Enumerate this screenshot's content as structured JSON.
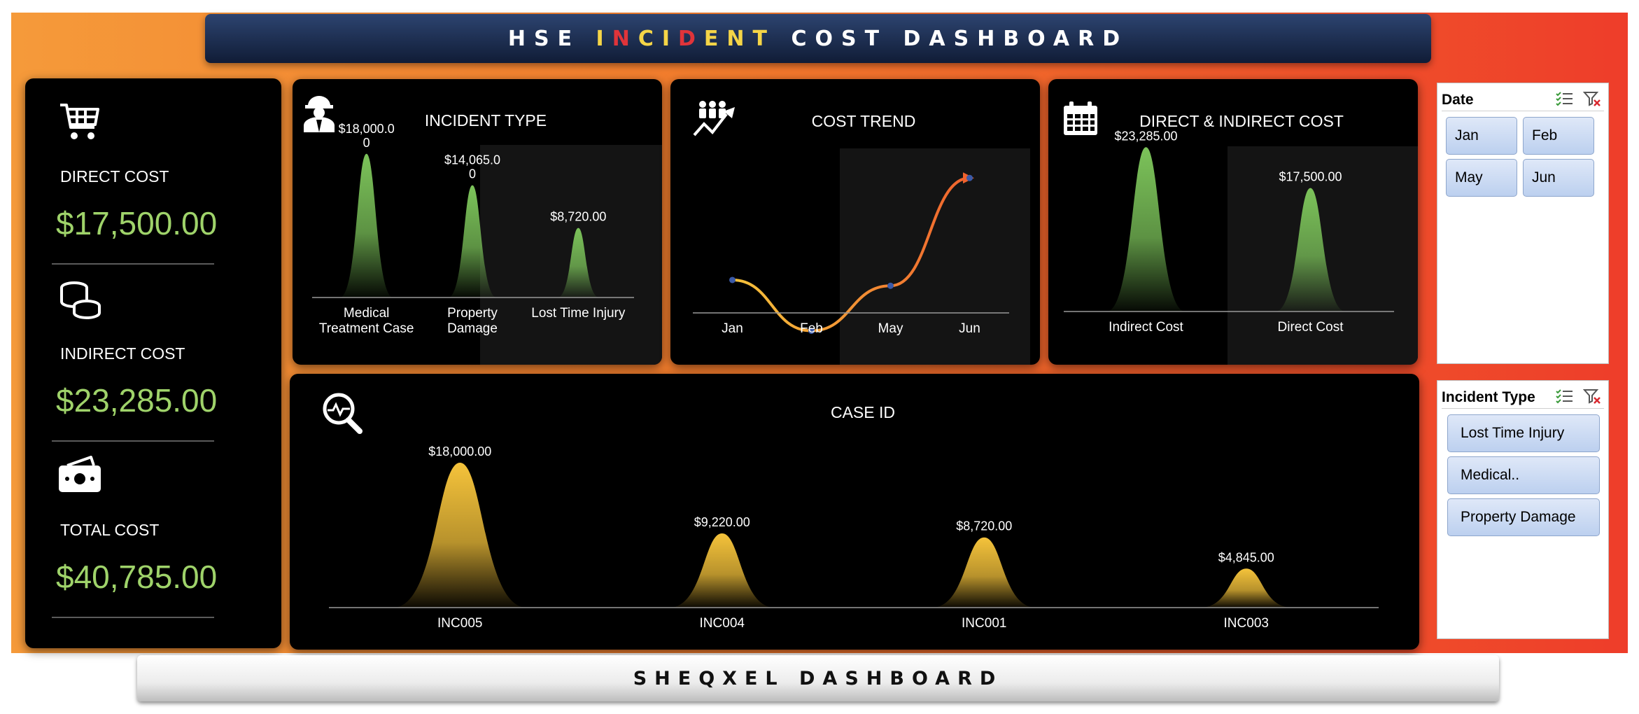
{
  "header": {
    "title_parts": [
      {
        "text": "HSE ",
        "color": "#ffffff"
      },
      {
        "text": "I",
        "color": "#f5d547"
      },
      {
        "text": "N",
        "color": "#e0343a"
      },
      {
        "text": "C",
        "color": "#f5d547"
      },
      {
        "text": "I",
        "color": "#f5d547"
      },
      {
        "text": "D",
        "color": "#e0343a"
      },
      {
        "text": "E",
        "color": "#f5d547"
      },
      {
        "text": "N",
        "color": "#f5d547"
      },
      {
        "text": "T",
        "color": "#f5d547"
      },
      {
        "text": " COST DASHBOARD",
        "color": "#ffffff"
      }
    ]
  },
  "kpis": {
    "direct": {
      "label": "DIRECT COST",
      "value": "$17,500.00",
      "icon": "shopping-cart-icon"
    },
    "indirect": {
      "label": "INDIRECT COST",
      "value": "$23,285.00",
      "icon": "coins-icon"
    },
    "total": {
      "label": "TOTAL COST",
      "value": "$40,785.00",
      "icon": "money-icon"
    }
  },
  "charts": {
    "incident_type": {
      "title": "INCIDENT TYPE",
      "icon": "worker-icon",
      "chart_data": {
        "type": "area",
        "categories": [
          "Medical Treatment Case",
          "Property Damage",
          "Lost Time Injury"
        ],
        "category_lines": [
          [
            "Medical",
            "Treatment Case"
          ],
          [
            "Property",
            "Damage"
          ],
          [
            "Lost Time Injury"
          ]
        ],
        "values": [
          18000,
          14065,
          8720
        ],
        "data_labels": [
          [
            "$18,000.0",
            "0"
          ],
          [
            "$14,065.0",
            "0"
          ],
          [
            "$8,720.00"
          ]
        ],
        "ylim": [
          0,
          20000
        ],
        "color": "#7cc35a"
      }
    },
    "cost_trend": {
      "title": "COST TREND",
      "icon": "trend-people-icon",
      "chart_data": {
        "type": "line",
        "categories": [
          "Jan",
          "Feb",
          "May",
          "Jun"
        ],
        "values": [
          9220,
          4845,
          8720,
          18000
        ],
        "ylim": [
          0,
          20000
        ],
        "colors": [
          "#f5c33b",
          "#f0622d"
        ]
      }
    },
    "direct_indirect": {
      "title": "DIRECT & INDIRECT COST",
      "icon": "calendar-icon",
      "chart_data": {
        "type": "area",
        "categories": [
          "Indirect Cost",
          "Direct Cost"
        ],
        "values": [
          23285,
          17500
        ],
        "data_labels": [
          "$23,285.00",
          "$17,500.00"
        ],
        "ylim": [
          0,
          25000
        ],
        "color": "#7cc35a"
      }
    },
    "case_id": {
      "title": "CASE ID",
      "icon": "search-pulse-icon",
      "chart_data": {
        "type": "area",
        "categories": [
          "INC005",
          "INC004",
          "INC001",
          "INC003"
        ],
        "values": [
          18000,
          9220,
          8720,
          4845
        ],
        "data_labels": [
          "$18,000.00",
          "$9,220.00",
          "$8,720.00",
          "$4,845.00"
        ],
        "ylim": [
          0,
          20000
        ],
        "color": "#f5c33b"
      }
    }
  },
  "slicers": {
    "date": {
      "title": "Date",
      "items": [
        "Jan",
        "Feb",
        "May",
        "Jun"
      ]
    },
    "incident_type": {
      "title": "Incident Type",
      "items": [
        "Lost Time Injury",
        "Medical..",
        "Property Damage"
      ]
    }
  },
  "footer": {
    "title": "SHEQXEL DASHBOARD"
  }
}
